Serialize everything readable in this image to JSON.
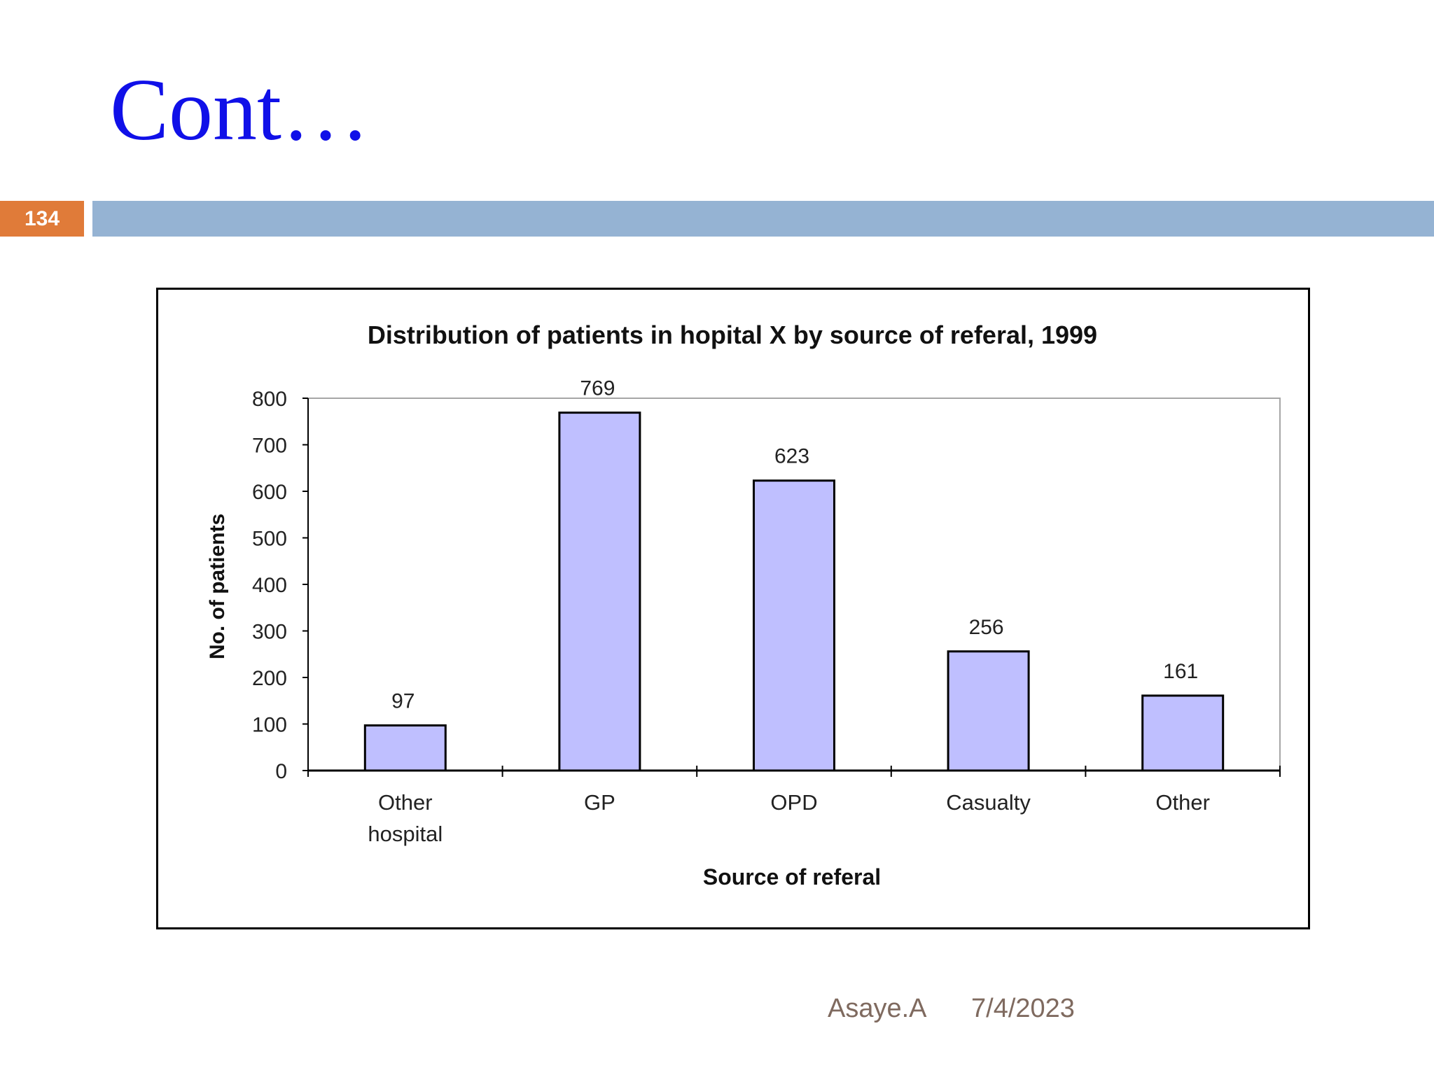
{
  "slide": {
    "title": "Cont…",
    "page_number": "134",
    "author": "Asaye.A",
    "date": "7/4/2023"
  },
  "colors": {
    "title": "#1010e8",
    "page_badge": "#e07b39",
    "title_rule": "#95b3d3",
    "bar_fill": "#bfbfff",
    "footer_text": "#7f6a5f"
  },
  "chart_data": {
    "type": "bar",
    "title": "Distribution of patients in hopital X by source of referal, 1999",
    "xlabel": "Source of referal",
    "ylabel": "No. of patients",
    "categories": [
      [
        "Other",
        "hospital"
      ],
      [
        "GP"
      ],
      [
        "OPD"
      ],
      [
        "Casualty"
      ],
      [
        "Other"
      ]
    ],
    "values": [
      97,
      769,
      623,
      256,
      161
    ],
    "ylim": [
      0,
      800
    ],
    "yticks": [
      0,
      100,
      200,
      300,
      400,
      500,
      600,
      700,
      800
    ],
    "grid": false,
    "legend": "none"
  }
}
